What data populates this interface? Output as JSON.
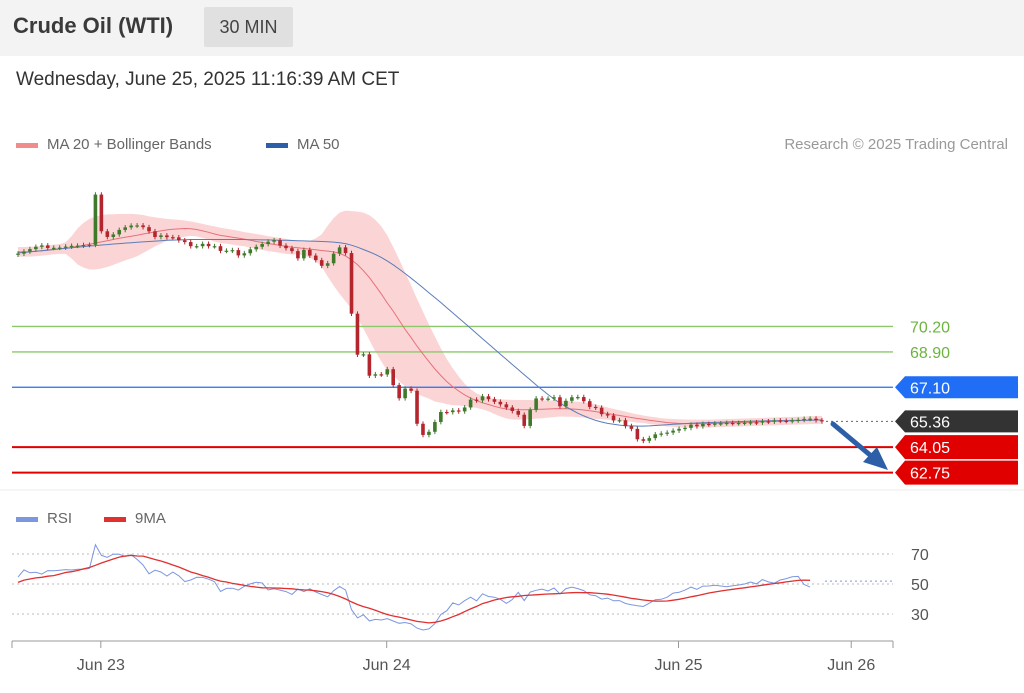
{
  "header": {
    "title": "Crude Oil (WTI)",
    "timeframe": "30 MIN"
  },
  "date_label": "Wednesday, June 25, 2025 11:16:39 AM CET",
  "credit": "Research © 2025 Trading Central",
  "colors": {
    "band": "#f7b2b2",
    "ma20": "#e8707a",
    "ma50": "#5a7db8",
    "up": "#3f7a2b",
    "down": "#b3262d",
    "resistance": "#8cc96b",
    "pivot": "#1f6ef5",
    "support": "#e00000",
    "last": "#333333",
    "rsi": "#7b97e0",
    "rsi_ma": "#e03030",
    "arrow": "#2d5fa8"
  },
  "chart_data": [
    {
      "type": "candlestick",
      "legend": [
        {
          "name": "MA 20 + Bollinger Bands",
          "color": "#f08c8c"
        },
        {
          "name": "MA 50",
          "color": "#2d5fa8"
        }
      ],
      "x_ticks": [
        "Jun 23",
        "Jun 24",
        "Jun 25",
        "Jun 26"
      ],
      "levels": [
        {
          "value": 70.2,
          "label": "70.20",
          "kind": "resistance"
        },
        {
          "value": 68.9,
          "label": "68.90",
          "kind": "resistance"
        },
        {
          "value": 67.1,
          "label": "67.10",
          "kind": "pivot"
        },
        {
          "value": 65.36,
          "label": "65.36",
          "kind": "last"
        },
        {
          "value": 64.05,
          "label": "64.05",
          "kind": "support"
        },
        {
          "value": 62.75,
          "label": "62.75",
          "kind": "support"
        }
      ],
      "close": [
        73.91,
        74.02,
        74.14,
        74.26,
        74.33,
        74.2,
        74.21,
        74.22,
        74.27,
        74.31,
        74.32,
        74.35,
        74.36,
        76.92,
        75.05,
        74.76,
        74.89,
        75.12,
        75.25,
        75.34,
        75.35,
        75.26,
        75.05,
        74.76,
        74.84,
        74.75,
        74.74,
        74.59,
        74.5,
        74.29,
        74.29,
        74.41,
        74.29,
        74.29,
        74.05,
        74.06,
        74.09,
        73.82,
        73.93,
        74.13,
        74.26,
        74.4,
        74.52,
        74.59,
        74.32,
        74.19,
        74.04,
        73.67,
        74.1,
        73.81,
        73.58,
        73.29,
        73.42,
        73.91,
        74.23,
        73.94,
        70.85,
        68.76,
        68.78,
        67.69,
        67.76,
        67.75,
        68.02,
        67.21,
        66.54,
        67.03,
        66.92,
        65.24,
        64.67,
        64.83,
        65.33,
        65.84,
        65.83,
        65.92,
        65.87,
        66.07,
        66.47,
        66.43,
        66.64,
        66.49,
        66.36,
        66.23,
        66.07,
        65.89,
        65.7,
        65.13,
        65.95,
        66.53,
        66.51,
        66.52,
        66.59,
        66.13,
        66.41,
        66.59,
        66.6,
        66.39,
        66.1,
        66.06,
        65.73,
        65.66,
        65.41,
        65.42,
        65.12,
        64.98,
        64.45,
        64.37,
        64.51,
        64.7,
        64.74,
        64.79,
        64.89,
        64.98,
        65.03,
        65.19,
        65.11,
        65.23,
        65.21,
        65.25,
        65.26,
        65.28,
        65.27,
        65.28,
        65.29,
        65.31,
        65.3,
        65.36,
        65.35,
        65.41,
        65.39,
        65.38,
        65.41,
        65.44,
        65.49,
        65.5,
        65.42,
        65.36
      ],
      "ma20": [
        74.0,
        74.0,
        74.01,
        74.03,
        74.06,
        74.09,
        74.12,
        74.15,
        74.19,
        74.23,
        74.28,
        74.34,
        74.39,
        74.45,
        74.51,
        74.57,
        74.63,
        74.69,
        74.75,
        74.8,
        74.85,
        74.91,
        74.96,
        75.02,
        75.07,
        75.12,
        75.15,
        75.17,
        75.19,
        75.18,
        75.14,
        75.07,
        75.0,
        74.91,
        74.84,
        74.8,
        74.75,
        74.7,
        74.65,
        74.59,
        74.53,
        74.48,
        74.42,
        74.38,
        74.33,
        74.28,
        74.24,
        74.21,
        74.17,
        74.14,
        74.11,
        74.07,
        74.04,
        74.0,
        73.93,
        73.79,
        73.59,
        73.35,
        73.04,
        72.69,
        72.28,
        71.86,
        71.4,
        70.98,
        70.51,
        70.05,
        69.63,
        69.2,
        68.79,
        68.41,
        68.03,
        67.7,
        67.39,
        67.13,
        66.91,
        66.71,
        66.55,
        66.42,
        66.31,
        66.22,
        66.13,
        66.05,
        65.99,
        65.96,
        65.95,
        65.95,
        65.96,
        65.97,
        65.98,
        65.99,
        66.0,
        66.01,
        66.0,
        65.99,
        65.97,
        65.94,
        65.9,
        65.86,
        65.81,
        65.76,
        65.71,
        65.66,
        65.61,
        65.56,
        65.51,
        65.47,
        65.42,
        65.38,
        65.34,
        65.3,
        65.28,
        65.26,
        65.25,
        65.25,
        65.25,
        65.25,
        65.25,
        65.26,
        65.27,
        65.28,
        65.29,
        65.3,
        65.31,
        65.32,
        65.33,
        65.34,
        65.35,
        65.36,
        65.37,
        65.38,
        65.39,
        65.4,
        65.41,
        65.42,
        65.43,
        65.44
      ],
      "bb_upper": [
        74.25,
        74.25,
        74.26,
        74.28,
        74.31,
        74.34,
        74.37,
        74.4,
        74.49,
        74.8,
        75.2,
        75.48,
        75.68,
        75.8,
        75.87,
        75.91,
        75.92,
        75.93,
        75.93,
        75.94,
        75.92,
        75.88,
        75.81,
        75.76,
        75.72,
        75.68,
        75.66,
        75.63,
        75.6,
        75.55,
        75.49,
        75.43,
        75.36,
        75.3,
        75.23,
        75.18,
        75.13,
        75.08,
        75.01,
        74.96,
        74.91,
        74.86,
        74.8,
        74.76,
        74.71,
        74.66,
        74.61,
        74.55,
        74.52,
        74.57,
        74.69,
        74.9,
        75.34,
        75.72,
        76.0,
        76.1,
        76.08,
        76.05,
        76.0,
        75.87,
        75.64,
        75.3,
        74.85,
        74.25,
        73.62,
        72.95,
        72.29,
        71.61,
        70.95,
        70.3,
        69.69,
        69.08,
        68.54,
        68.07,
        67.65,
        67.28,
        67.0,
        66.79,
        66.65,
        66.56,
        66.52,
        66.49,
        66.47,
        66.46,
        66.45,
        66.45,
        66.45,
        66.44,
        66.44,
        66.43,
        66.42,
        66.41,
        66.4,
        66.38,
        66.36,
        66.33,
        66.29,
        66.23,
        66.15,
        66.07,
        66.0,
        65.93,
        65.86,
        65.78,
        65.72,
        65.66,
        65.61,
        65.57,
        65.53,
        65.5,
        65.48,
        65.47,
        65.46,
        65.45,
        65.45,
        65.45,
        65.45,
        65.46,
        65.47,
        65.48,
        65.49,
        65.5,
        65.51,
        65.52,
        65.53,
        65.54,
        65.55,
        65.56,
        65.57,
        65.58,
        65.59,
        65.6,
        65.61,
        65.62,
        65.63,
        65.64
      ],
      "bb_lower": [
        73.75,
        73.75,
        73.76,
        73.78,
        73.81,
        73.84,
        73.87,
        73.9,
        73.89,
        73.66,
        73.36,
        73.2,
        73.1,
        73.1,
        73.15,
        73.23,
        73.34,
        73.45,
        73.57,
        73.66,
        73.78,
        73.94,
        74.11,
        74.28,
        74.42,
        74.56,
        74.64,
        74.71,
        74.78,
        74.81,
        74.79,
        74.71,
        74.64,
        74.52,
        74.45,
        74.42,
        74.37,
        74.32,
        74.29,
        74.22,
        74.15,
        74.1,
        74.04,
        74.0,
        73.95,
        73.9,
        73.87,
        73.87,
        73.82,
        73.71,
        73.53,
        73.24,
        72.74,
        72.28,
        71.86,
        71.48,
        71.1,
        70.65,
        70.08,
        69.51,
        68.92,
        68.42,
        67.95,
        67.71,
        67.4,
        67.15,
        66.97,
        66.79,
        66.63,
        66.52,
        66.37,
        66.32,
        66.24,
        66.19,
        66.17,
        66.14,
        66.1,
        66.05,
        65.97,
        65.88,
        65.74,
        65.61,
        65.51,
        65.46,
        65.45,
        65.45,
        65.47,
        65.5,
        65.52,
        65.55,
        65.58,
        65.61,
        65.6,
        65.6,
        65.58,
        65.55,
        65.51,
        65.49,
        65.47,
        65.45,
        65.42,
        65.39,
        65.36,
        65.34,
        65.3,
        65.28,
        65.23,
        65.19,
        65.15,
        65.1,
        65.08,
        65.05,
        65.04,
        65.05,
        65.05,
        65.05,
        65.05,
        65.06,
        65.07,
        65.08,
        65.09,
        65.1,
        65.11,
        65.12,
        65.13,
        65.14,
        65.15,
        65.16,
        65.17,
        65.18,
        65.19,
        65.2,
        65.21,
        65.22,
        65.23,
        65.24
      ],
      "ma50": [
        73.95,
        73.97,
        74.0,
        74.03,
        74.06,
        74.09,
        74.12,
        74.15,
        74.18,
        74.21,
        74.24,
        74.27,
        74.3,
        74.32,
        74.35,
        74.37,
        74.4,
        74.42,
        74.45,
        74.47,
        74.49,
        74.51,
        74.53,
        74.55,
        74.57,
        74.59,
        74.6,
        74.61,
        74.62,
        74.63,
        74.63,
        74.63,
        74.63,
        74.63,
        74.63,
        74.63,
        74.63,
        74.63,
        74.63,
        74.62,
        74.62,
        74.61,
        74.61,
        74.6,
        74.59,
        74.59,
        74.58,
        74.57,
        74.56,
        74.55,
        74.54,
        74.53,
        74.52,
        74.5,
        74.47,
        74.42,
        74.34,
        74.24,
        74.12,
        74.0,
        73.87,
        73.72,
        73.54,
        73.34,
        73.12,
        72.9,
        72.66,
        72.42,
        72.17,
        71.92,
        71.67,
        71.42,
        71.15,
        70.89,
        70.63,
        70.37,
        70.11,
        69.84,
        69.57,
        69.31,
        69.05,
        68.78,
        68.52,
        68.26,
        68.0,
        67.74,
        67.48,
        67.22,
        66.97,
        66.73,
        66.5,
        66.3,
        66.11,
        65.94,
        65.78,
        65.64,
        65.52,
        65.41,
        65.33,
        65.26,
        65.21,
        65.17,
        65.14,
        65.13,
        65.12,
        65.12,
        65.13,
        65.15,
        65.17,
        65.19,
        65.21,
        65.23,
        65.25,
        65.27,
        65.28,
        65.29,
        65.3,
        65.31,
        65.32,
        65.33,
        65.34,
        65.35,
        65.36,
        65.37,
        65.38,
        65.38,
        65.39,
        65.39,
        65.4,
        65.4,
        65.41,
        65.41,
        65.42,
        65.42,
        65.43,
        65.43
      ]
    },
    {
      "type": "line",
      "legend": [
        {
          "name": "RSI",
          "color": "#7b97e0"
        },
        {
          "name": "9MA",
          "color": "#e03030"
        }
      ],
      "y_ticks": [
        70,
        50,
        30
      ],
      "rsi": [
        54.6,
        59.4,
        57.5,
        57.8,
        56.6,
        58.9,
        58.8,
        59.2,
        59.6,
        59.3,
        59.8,
        59.8,
        60.5,
        76.2,
        69.1,
        67.8,
        69.9,
        69.8,
        68.3,
        69.5,
        66.4,
        62.6,
        56.8,
        59.2,
        58.0,
        55.3,
        57.9,
        55.5,
        51.6,
        52.7,
        54.5,
        54.4,
        53.2,
        51.6,
        45.0,
        47.1,
        47.2,
        45.9,
        48.5,
        50.1,
        51.2,
        50.7,
        46.1,
        46.8,
        45.9,
        44.9,
        43.1,
        46.7,
        44.9,
        46.8,
        44.7,
        43.0,
        41.5,
        45.5,
        48.3,
        45.9,
        32.9,
        27.4,
        29.5,
        25.4,
        26.4,
        26.0,
        26.9,
        25.3,
        23.8,
        24.3,
        23.4,
        20.6,
        19.3,
        20.1,
        23.6,
        29.7,
        32.2,
        37.4,
        36.0,
        38.9,
        41.2,
        38.8,
        43.5,
        41.7,
        41.2,
        39.8,
        37.1,
        39.7,
        44.5,
        38.9,
        44.6,
        45.8,
        46.6,
        45.3,
        47.3,
        43.4,
        46.9,
        47.9,
        46.9,
        45.6,
        42.8,
        42.2,
        39.9,
        40.6,
        38.8,
        38.9,
        37.0,
        36.2,
        35.5,
        35.0,
        37.2,
        39.5,
        39.8,
        41.2,
        43.9,
        44.5,
        45.9,
        47.9,
        46.5,
        48.6,
        48.7,
        49.2,
        48.7,
        48.2,
        48.8,
        49.3,
        50.0,
        51.3,
        50.1,
        52.9,
        51.4,
        50.6,
        52.7,
        53.6,
        54.8,
        55.1,
        49.7,
        47.9
      ],
      "rsi_ma": [
        51.1,
        52.6,
        53.3,
        54.1,
        54.5,
        55.2,
        55.6,
        56.6,
        57.7,
        58.2,
        59.0,
        60.1,
        61.0,
        62.5,
        64.0,
        65.3,
        66.7,
        67.9,
        68.7,
        69.1,
        68.7,
        68.6,
        67.5,
        66.3,
        65.3,
        64.1,
        62.7,
        61.3,
        59.7,
        58.0,
        56.9,
        55.6,
        54.5,
        53.1,
        51.9,
        51.3,
        50.4,
        49.8,
        49.1,
        48.4,
        47.9,
        47.5,
        47.4,
        47.3,
        47.2,
        47.0,
        46.8,
        46.3,
        46.1,
        45.9,
        45.5,
        44.9,
        44.2,
        43.1,
        41.7,
        40.0,
        38.1,
        36.3,
        34.9,
        33.8,
        32.5,
        31.0,
        29.7,
        28.7,
        27.9,
        27.0,
        26.0,
        25.1,
        24.6,
        24.1,
        24.5,
        25.3,
        26.6,
        28.2,
        29.7,
        31.6,
        33.4,
        35.1,
        36.9,
        38.1,
        39.3,
        40.2,
        41.0,
        41.5,
        41.8,
        42.3,
        42.6,
        42.8,
        43.1,
        43.3,
        43.5,
        43.7,
        44.0,
        44.2,
        44.3,
        44.2,
        44.2,
        43.9,
        43.6,
        43.2,
        42.6,
        41.9,
        41.2,
        40.4,
        39.9,
        39.3,
        38.9,
        38.6,
        38.6,
        38.7,
        39.2,
        39.8,
        40.6,
        41.5,
        42.2,
        43.1,
        44.0,
        44.7,
        45.3,
        45.9,
        46.5,
        47.0,
        47.5,
        48.1,
        48.6,
        49.2,
        49.8,
        50.3,
        50.8,
        51.4,
        51.9,
        52.4,
        52.6,
        52.5
      ]
    }
  ]
}
